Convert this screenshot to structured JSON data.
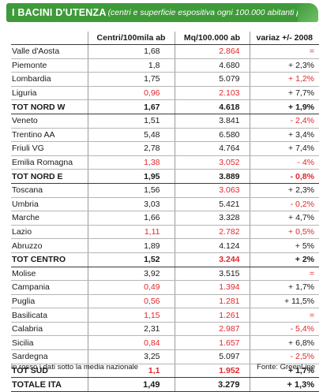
{
  "header": {
    "title": "I BACINI D'UTENZA",
    "subtitle": "(centri e superficie espositiva ogni 100.000 abitanti per Regione)"
  },
  "columns": [
    "",
    "Centri/100mila ab",
    "Mq/100.000 ab",
    "variaz +/- 2008"
  ],
  "rows": [
    {
      "name": "Valle d'Aosta",
      "centri": "1,68",
      "mq": "2.864",
      "variaz": "=",
      "centri_red": false,
      "mq_red": true,
      "variaz_red": true,
      "type": "row"
    },
    {
      "name": "Piemonte",
      "centri": "1,8",
      "mq": "4.680",
      "variaz": "+ 2,3%",
      "centri_red": false,
      "mq_red": false,
      "variaz_red": false,
      "type": "row"
    },
    {
      "name": "Lombardia",
      "centri": "1,75",
      "mq": "5.079",
      "variaz": "+ 1,2%",
      "centri_red": false,
      "mq_red": false,
      "variaz_red": true,
      "type": "row"
    },
    {
      "name": "Liguria",
      "centri": "0,96",
      "mq": "2.103",
      "variaz": "+ 7,7%",
      "centri_red": true,
      "mq_red": true,
      "variaz_red": false,
      "type": "row"
    },
    {
      "name": "TOT NORD W",
      "centri": "1,67",
      "mq": "4.618",
      "variaz": "+ 1,9%",
      "centri_red": false,
      "mq_red": false,
      "variaz_red": false,
      "type": "tot"
    },
    {
      "name": "Veneto",
      "centri": "1,51",
      "mq": "3.841",
      "variaz": "- 2,4%",
      "centri_red": false,
      "mq_red": false,
      "variaz_red": true,
      "type": "row"
    },
    {
      "name": "Trentino AA",
      "centri": "5,48",
      "mq": "6.580",
      "variaz": "+ 3,4%",
      "centri_red": false,
      "mq_red": false,
      "variaz_red": false,
      "type": "row"
    },
    {
      "name": "Friuli VG",
      "centri": "2,78",
      "mq": "4.764",
      "variaz": "+ 7,4%",
      "centri_red": false,
      "mq_red": false,
      "variaz_red": false,
      "type": "row"
    },
    {
      "name": "Emilia Romagna",
      "centri": "1,38",
      "mq": "3.052",
      "variaz": "- 4%",
      "centri_red": true,
      "mq_red": true,
      "variaz_red": true,
      "type": "row"
    },
    {
      "name": "TOT NORD E",
      "centri": "1,95",
      "mq": "3.889",
      "variaz": "- 0,8%",
      "centri_red": false,
      "mq_red": false,
      "variaz_red": true,
      "type": "tot"
    },
    {
      "name": "Toscana",
      "centri": "1,56",
      "mq": "3.063",
      "variaz": "+ 2,3%",
      "centri_red": false,
      "mq_red": true,
      "variaz_red": false,
      "type": "row"
    },
    {
      "name": "Umbria",
      "centri": "3,03",
      "mq": "5.421",
      "variaz": "- 0,2%",
      "centri_red": false,
      "mq_red": false,
      "variaz_red": true,
      "type": "row"
    },
    {
      "name": "Marche",
      "centri": "1,66",
      "mq": "3.328",
      "variaz": "+ 4,7%",
      "centri_red": false,
      "mq_red": false,
      "variaz_red": false,
      "type": "row"
    },
    {
      "name": "Lazio",
      "centri": "1,11",
      "mq": "2.782",
      "variaz": "+ 0,5%",
      "centri_red": true,
      "mq_red": true,
      "variaz_red": true,
      "type": "row"
    },
    {
      "name": "Abruzzo",
      "centri": "1,89",
      "mq": "4.124",
      "variaz": "+ 5%",
      "centri_red": false,
      "mq_red": false,
      "variaz_red": false,
      "type": "row"
    },
    {
      "name": "TOT CENTRO",
      "centri": "1,52",
      "mq": "3.244",
      "variaz": "+ 2%",
      "centri_red": false,
      "mq_red": true,
      "variaz_red": false,
      "type": "tot"
    },
    {
      "name": "Molise",
      "centri": "3,92",
      "mq": "3.515",
      "variaz": "=",
      "centri_red": false,
      "mq_red": false,
      "variaz_red": true,
      "type": "row"
    },
    {
      "name": "Campania",
      "centri": "0,49",
      "mq": "1.394",
      "variaz": "+ 1,7%",
      "centri_red": true,
      "mq_red": true,
      "variaz_red": false,
      "type": "row"
    },
    {
      "name": "Puglia",
      "centri": "0,56",
      "mq": "1.281",
      "variaz": "+ 11,5%",
      "centri_red": true,
      "mq_red": true,
      "variaz_red": false,
      "type": "row"
    },
    {
      "name": "Basilicata",
      "centri": "1,15",
      "mq": "1.261",
      "variaz": "=",
      "centri_red": true,
      "mq_red": true,
      "variaz_red": true,
      "type": "row"
    },
    {
      "name": "Calabria",
      "centri": "2,31",
      "mq": "2.987",
      "variaz": "- 5,4%",
      "centri_red": false,
      "mq_red": true,
      "variaz_red": true,
      "type": "row"
    },
    {
      "name": "Sicilia",
      "centri": "0,84",
      "mq": "1.657",
      "variaz": "+ 6,8%",
      "centri_red": true,
      "mq_red": true,
      "variaz_red": false,
      "type": "row"
    },
    {
      "name": "Sardegna",
      "centri": "3,25",
      "mq": "5.097",
      "variaz": "- 2,5%",
      "centri_red": false,
      "mq_red": false,
      "variaz_red": true,
      "type": "row"
    },
    {
      "name": "TOT SUD",
      "centri": "1,1",
      "mq": "1.952",
      "variaz": "+ 1,7%",
      "centri_red": true,
      "mq_red": true,
      "variaz_red": false,
      "type": "tot"
    },
    {
      "name": "TOTALE ITA",
      "centri": "1,49",
      "mq": "3.279",
      "variaz": "+ 1,3%",
      "centri_red": false,
      "mq_red": false,
      "variaz_red": false,
      "type": "grand"
    }
  ],
  "footer": {
    "note": "in rosso i dati sotto la media nazionale",
    "source": "Fonte: GreenLine"
  },
  "colors": {
    "header_bg": "#3f9a3a",
    "below_average": "#e3262b"
  }
}
